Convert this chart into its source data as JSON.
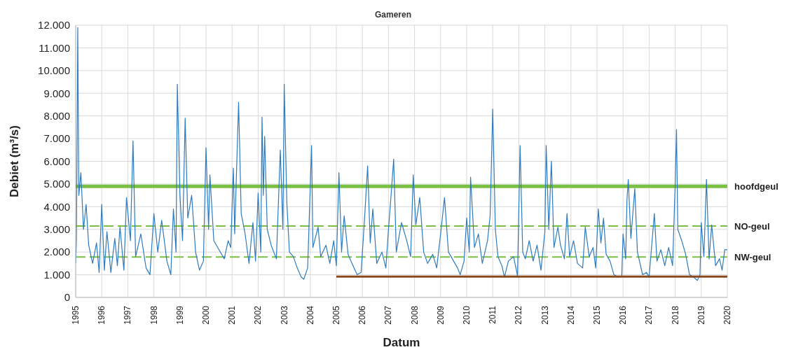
{
  "chart_data": {
    "type": "line",
    "title": "Gameren",
    "xlabel": "Datum",
    "ylabel": "Debiet (m³/s)",
    "xlim": [
      1995,
      2020
    ],
    "xticks": [
      1995,
      1996,
      1997,
      1998,
      1999,
      2000,
      2001,
      2002,
      2003,
      2004,
      2005,
      2006,
      2007,
      2008,
      2009,
      2010,
      2011,
      2012,
      2013,
      2014,
      2015,
      2016,
      2017,
      2018,
      2019,
      2020
    ],
    "ylim": [
      0,
      12000
    ],
    "yticks": [
      0,
      {
        "value": 1000,
        "label": "1.000"
      },
      {
        "value": 2000,
        "label": "2.000"
      },
      {
        "value": 3000,
        "label": "3.000"
      },
      {
        "value": 4000,
        "label": "4.000"
      },
      {
        "value": 5000,
        "label": "5.000"
      },
      {
        "value": 6000,
        "label": "6.000"
      },
      {
        "value": 7000,
        "label": "7.000"
      },
      {
        "value": 8000,
        "label": "8.000"
      },
      {
        "value": 9000,
        "label": "9.000"
      },
      {
        "value": 10000,
        "label": "10.000"
      },
      {
        "value": 11000,
        "label": "11.000"
      },
      {
        "value": 12000,
        "label": "12.000"
      }
    ],
    "grid": true,
    "marker": "none",
    "series": [
      {
        "color": "#2e7bbf",
        "x": [
          1995.0,
          1995.03,
          1995.08,
          1995.12,
          1995.2,
          1995.3,
          1995.4,
          1995.5,
          1995.65,
          1995.8,
          1995.9,
          1996.0,
          1996.1,
          1996.2,
          1996.35,
          1996.5,
          1996.6,
          1996.7,
          1996.85,
          1996.95,
          1997.1,
          1997.2,
          1997.3,
          1997.5,
          1997.7,
          1997.85,
          1998.0,
          1998.15,
          1998.3,
          1998.5,
          1998.65,
          1998.75,
          1998.85,
          1998.9,
          1999.0,
          1999.1,
          1999.2,
          1999.3,
          1999.45,
          1999.6,
          1999.75,
          1999.9,
          2000.0,
          2000.1,
          2000.15,
          2000.3,
          2000.5,
          2000.7,
          2000.85,
          2000.95,
          2001.05,
          2001.1,
          2001.25,
          2001.35,
          2001.5,
          2001.65,
          2001.8,
          2001.9,
          2002.0,
          2002.1,
          2002.15,
          2002.2,
          2002.25,
          2002.35,
          2002.5,
          2002.7,
          2002.85,
          2002.95,
          2003.0,
          2003.1,
          2003.2,
          2003.35,
          2003.5,
          2003.65,
          2003.75,
          2003.9,
          2004.05,
          2004.1,
          2004.3,
          2004.4,
          2004.6,
          2004.75,
          2004.9,
          2005.0,
          2005.1,
          2005.2,
          2005.3,
          2005.45,
          2005.6,
          2005.8,
          2005.95,
          2006.1,
          2006.2,
          2006.3,
          2006.4,
          2006.55,
          2006.75,
          2006.9,
          2007.0,
          2007.1,
          2007.2,
          2007.3,
          2007.5,
          2007.7,
          2007.85,
          2007.95,
          2008.05,
          2008.2,
          2008.35,
          2008.5,
          2008.7,
          2008.85,
          2009.0,
          2009.15,
          2009.3,
          2009.5,
          2009.65,
          2009.75,
          2009.9,
          2010.0,
          2010.1,
          2010.15,
          2010.3,
          2010.45,
          2010.6,
          2010.8,
          2010.9,
          2011.0,
          2011.1,
          2011.2,
          2011.35,
          2011.45,
          2011.6,
          2011.8,
          2011.95,
          2012.05,
          2012.15,
          2012.25,
          2012.4,
          2012.55,
          2012.7,
          2012.85,
          2013.0,
          2013.05,
          2013.15,
          2013.25,
          2013.35,
          2013.5,
          2013.6,
          2013.75,
          2013.85,
          2013.95,
          2014.1,
          2014.25,
          2014.45,
          2014.55,
          2014.7,
          2014.85,
          2014.95,
          2015.05,
          2015.15,
          2015.25,
          2015.35,
          2015.5,
          2015.65,
          2015.8,
          2015.95,
          2016.0,
          2016.1,
          2016.15,
          2016.2,
          2016.3,
          2016.45,
          2016.55,
          2016.75,
          2016.9,
          2017.0,
          2017.2,
          2017.3,
          2017.45,
          2017.6,
          2017.75,
          2017.9,
          2018.0,
          2018.05,
          2018.1,
          2018.25,
          2018.4,
          2018.55,
          2018.7,
          2018.85,
          2018.95,
          2019.0,
          2019.1,
          2019.2,
          2019.3,
          2019.4,
          2019.55,
          2019.7,
          2019.8,
          2019.9,
          2020.0
        ],
        "values": [
          1500,
          2600,
          11900,
          4500,
          5500,
          3000,
          4100,
          2300,
          1500,
          2400,
          1100,
          4100,
          1200,
          2900,
          1100,
          2600,
          1400,
          3100,
          1200,
          4400,
          2500,
          6900,
          1800,
          2800,
          1300,
          1000,
          3700,
          2000,
          3400,
          1600,
          1000,
          3900,
          2000,
          9400,
          4500,
          2500,
          7900,
          3500,
          4500,
          2000,
          1200,
          1600,
          6600,
          3000,
          5400,
          2500,
          2100,
          1700,
          2500,
          2200,
          5700,
          2800,
          8600,
          3700,
          2800,
          1500,
          3300,
          1600,
          4600,
          2000,
          7950,
          4500,
          7100,
          3000,
          2300,
          1700,
          6500,
          3000,
          9400,
          4200,
          2000,
          1800,
          1300,
          900,
          800,
          1300,
          6700,
          2200,
          3100,
          1800,
          2300,
          1500,
          2500,
          1400,
          5500,
          2000,
          3600,
          1900,
          1500,
          1000,
          1100,
          3800,
          5800,
          2400,
          3900,
          1500,
          2000,
          1300,
          3000,
          4500,
          6100,
          2000,
          3300,
          2500,
          1800,
          5400,
          3200,
          4400,
          2000,
          1500,
          1900,
          1300,
          2800,
          4400,
          2000,
          1600,
          1300,
          1000,
          1600,
          3500,
          2000,
          5300,
          2200,
          2800,
          1500,
          2500,
          3600,
          8300,
          3000,
          1800,
          1400,
          900,
          1600,
          1800,
          950,
          6700,
          2000,
          1700,
          2500,
          1600,
          2300,
          1200,
          2900,
          6700,
          3000,
          6000,
          2200,
          3100,
          2300,
          1700,
          3700,
          1800,
          2500,
          1500,
          1300,
          3100,
          1800,
          2200,
          1300,
          3900,
          2400,
          3500,
          1900,
          1600,
          1000,
          900,
          950,
          2800,
          1700,
          4300,
          5200,
          2600,
          4800,
          2000,
          1000,
          1100,
          900,
          3700,
          1600,
          2100,
          1400,
          2200,
          1400,
          5000,
          7400,
          3000,
          2500,
          1900,
          1000,
          900,
          750,
          1000,
          3300,
          1800,
          5200,
          1700,
          3200,
          1400,
          1700,
          1200,
          2100,
          2100
        ]
      },
      {
        "color": "#8b4a1c",
        "x": [
          2005,
          2020
        ],
        "values": [
          920,
          920
        ]
      }
    ],
    "ref_lines": [
      {
        "axis": "y",
        "value": 4900,
        "label": "hoofdgeul",
        "color": "#7ac143",
        "line_style": "solid"
      },
      {
        "axis": "y",
        "value": 3150,
        "label": "NO-geul",
        "color": "#7ac143",
        "line_style": "dashed"
      },
      {
        "axis": "y",
        "value": 1780,
        "label": "NW-geul",
        "color": "#7ac143",
        "line_style": "dashed"
      }
    ]
  }
}
